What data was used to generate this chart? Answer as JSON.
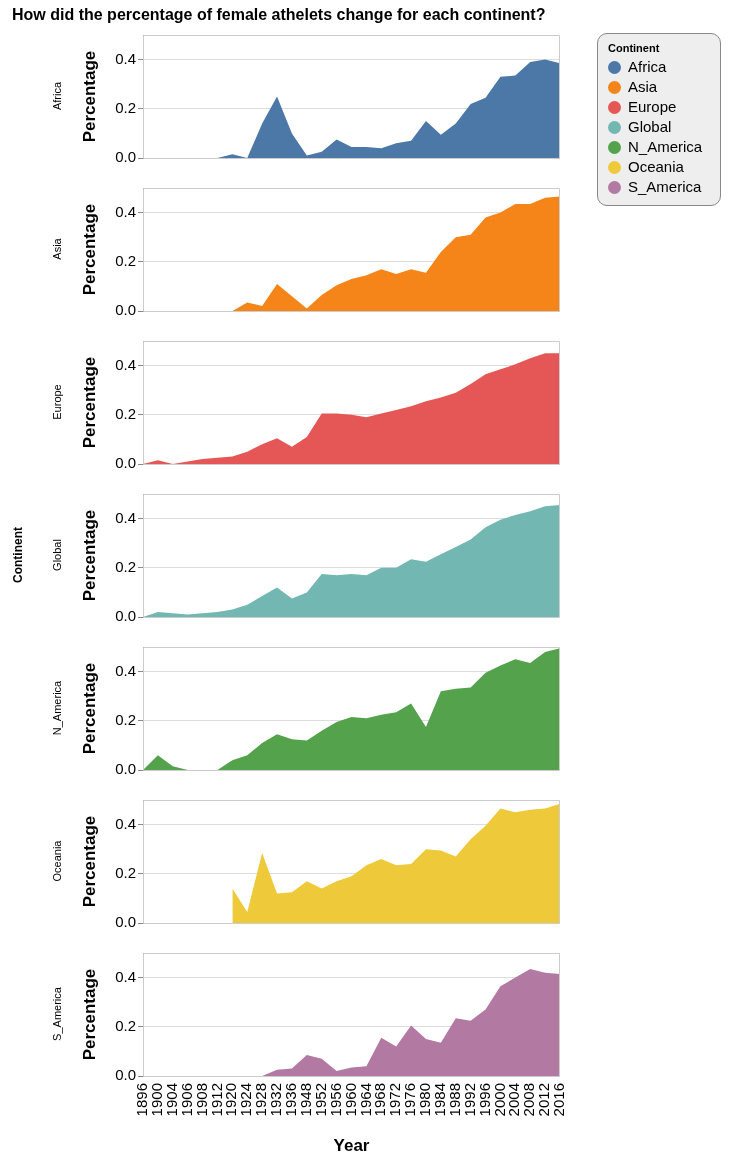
{
  "chart_data": [
    {
      "type": "area",
      "title": "How did the percentage of female athelets change for each continent?",
      "legend": "right",
      "legend_title": "Continent",
      "ylabel": "Percentage",
      "tick_labels": "y",
      "grid": "y",
      "ylim": [
        0,
        0.5
      ],
      "yticks": [
        {
          "value": 0,
          "label": "0.0"
        },
        {
          "value": 0.2,
          "label": "0.2"
        },
        {
          "value": 0.4,
          "label": "0.4"
        }
      ],
      "categories": [
        "1896",
        "1900",
        "1904",
        "1906",
        "1908",
        "1912",
        "1920",
        "1924",
        "1928",
        "1932",
        "1936",
        "1948",
        "1952",
        "1956",
        "1960",
        "1964",
        "1968",
        "1972",
        "1976",
        "1980",
        "1984",
        "1988",
        "1992",
        "1996",
        "2000",
        "2004",
        "2008",
        "2012",
        "2016"
      ],
      "series": [
        {
          "name": "Africa",
          "color": "#4c78a8",
          "values": [
            null,
            null,
            null,
            null,
            null,
            0,
            0.015,
            0,
            0.14,
            0.25,
            0.1,
            0.01,
            0.025,
            0.075,
            0.045,
            0.045,
            0.04,
            0.06,
            0.07,
            0.15,
            0.095,
            0.14,
            0.22,
            0.245,
            0.33,
            0.335,
            0.39,
            0.4,
            0.385
          ]
        }
      ]
    },
    {
      "type": "area",
      "ylabel": "Percentage",
      "tick_labels": "y",
      "grid": "y",
      "ylim": [
        0,
        0.5
      ],
      "yticks": [
        {
          "value": 0,
          "label": "0.0"
        },
        {
          "value": 0.2,
          "label": "0.2"
        },
        {
          "value": 0.4,
          "label": "0.4"
        }
      ],
      "categories": [
        "1896",
        "1900",
        "1904",
        "1906",
        "1908",
        "1912",
        "1920",
        "1924",
        "1928",
        "1932",
        "1936",
        "1948",
        "1952",
        "1956",
        "1960",
        "1964",
        "1968",
        "1972",
        "1976",
        "1980",
        "1984",
        "1988",
        "1992",
        "1996",
        "2000",
        "2004",
        "2008",
        "2012",
        "2016"
      ],
      "series": [
        {
          "name": "Asia",
          "color": "#f58518",
          "values": [
            null,
            null,
            null,
            null,
            null,
            null,
            0,
            0.035,
            0.02,
            0.11,
            0.06,
            0.01,
            0.065,
            0.105,
            0.13,
            0.145,
            0.17,
            0.15,
            0.17,
            0.155,
            0.24,
            0.3,
            0.31,
            0.38,
            0.4,
            0.435,
            0.435,
            0.46,
            0.465
          ]
        }
      ]
    },
    {
      "type": "area",
      "ylabel": "Percentage",
      "tick_labels": "y",
      "grid": "y",
      "ylim": [
        0,
        0.5
      ],
      "yticks": [
        {
          "value": 0,
          "label": "0.0"
        },
        {
          "value": 0.2,
          "label": "0.2"
        },
        {
          "value": 0.4,
          "label": "0.4"
        }
      ],
      "categories": [
        "1896",
        "1900",
        "1904",
        "1906",
        "1908",
        "1912",
        "1920",
        "1924",
        "1928",
        "1932",
        "1936",
        "1948",
        "1952",
        "1956",
        "1960",
        "1964",
        "1968",
        "1972",
        "1976",
        "1980",
        "1984",
        "1988",
        "1992",
        "1996",
        "2000",
        "2004",
        "2008",
        "2012",
        "2016"
      ],
      "series": [
        {
          "name": "Europe",
          "color": "#e45756",
          "values": [
            0,
            0.015,
            0,
            0.01,
            0.02,
            0.025,
            0.03,
            0.05,
            0.08,
            0.105,
            0.07,
            0.11,
            0.205,
            0.205,
            0.2,
            0.19,
            0.205,
            0.22,
            0.235,
            0.255,
            0.27,
            0.29,
            0.325,
            0.365,
            0.385,
            0.405,
            0.43,
            0.45,
            0.45
          ]
        }
      ]
    },
    {
      "type": "area",
      "ylabel": "Percentage",
      "tick_labels": "y",
      "grid": "y",
      "ylim": [
        0,
        0.5
      ],
      "yticks": [
        {
          "value": 0,
          "label": "0.0"
        },
        {
          "value": 0.2,
          "label": "0.2"
        },
        {
          "value": 0.4,
          "label": "0.4"
        }
      ],
      "annotations": [
        "Continent"
      ],
      "categories": [
        "1896",
        "1900",
        "1904",
        "1906",
        "1908",
        "1912",
        "1920",
        "1924",
        "1928",
        "1932",
        "1936",
        "1948",
        "1952",
        "1956",
        "1960",
        "1964",
        "1968",
        "1972",
        "1976",
        "1980",
        "1984",
        "1988",
        "1992",
        "1996",
        "2000",
        "2004",
        "2008",
        "2012",
        "2016"
      ],
      "series": [
        {
          "name": "Global",
          "color": "#72b7b2",
          "values": [
            0,
            0.02,
            0.015,
            0.01,
            0.015,
            0.02,
            0.03,
            0.05,
            0.085,
            0.12,
            0.075,
            0.1,
            0.175,
            0.17,
            0.175,
            0.17,
            0.2,
            0.2,
            0.235,
            0.225,
            0.255,
            0.285,
            0.315,
            0.365,
            0.395,
            0.415,
            0.43,
            0.45,
            0.455
          ]
        }
      ]
    },
    {
      "type": "area",
      "ylabel": "Percentage",
      "tick_labels": "y",
      "grid": "y",
      "ylim": [
        0,
        0.5
      ],
      "yticks": [
        {
          "value": 0,
          "label": "0.0"
        },
        {
          "value": 0.2,
          "label": "0.2"
        },
        {
          "value": 0.4,
          "label": "0.4"
        }
      ],
      "categories": [
        "1896",
        "1900",
        "1904",
        "1906",
        "1908",
        "1912",
        "1920",
        "1924",
        "1928",
        "1932",
        "1936",
        "1948",
        "1952",
        "1956",
        "1960",
        "1964",
        "1968",
        "1972",
        "1976",
        "1980",
        "1984",
        "1988",
        "1992",
        "1996",
        "2000",
        "2004",
        "2008",
        "2012",
        "2016"
      ],
      "series": [
        {
          "name": "N_America",
          "color": "#54a24b",
          "values": [
            0,
            0.06,
            0.015,
            0,
            0,
            0,
            0.04,
            0.06,
            0.11,
            0.145,
            0.125,
            0.12,
            0.16,
            0.195,
            0.215,
            0.21,
            0.225,
            0.235,
            0.27,
            0.175,
            0.32,
            0.33,
            0.335,
            0.395,
            0.425,
            0.45,
            0.435,
            0.48,
            0.495
          ]
        }
      ]
    },
    {
      "type": "area",
      "ylabel": "Percentage",
      "tick_labels": "y",
      "grid": "y",
      "ylim": [
        0,
        0.5
      ],
      "yticks": [
        {
          "value": 0,
          "label": "0.0"
        },
        {
          "value": 0.2,
          "label": "0.2"
        },
        {
          "value": 0.4,
          "label": "0.4"
        }
      ],
      "categories": [
        "1896",
        "1900",
        "1904",
        "1906",
        "1908",
        "1912",
        "1920",
        "1924",
        "1928",
        "1932",
        "1936",
        "1948",
        "1952",
        "1956",
        "1960",
        "1964",
        "1968",
        "1972",
        "1976",
        "1980",
        "1984",
        "1988",
        "1992",
        "1996",
        "2000",
        "2004",
        "2008",
        "2012",
        "2016"
      ],
      "series": [
        {
          "name": "Oceania",
          "color": "#eeca3b",
          "values": [
            null,
            null,
            null,
            null,
            null,
            null,
            0.14,
            0.045,
            0.285,
            0.12,
            0.125,
            0.17,
            0.14,
            0.17,
            0.19,
            0.235,
            0.26,
            0.235,
            0.24,
            0.3,
            0.295,
            0.27,
            0.34,
            0.395,
            0.465,
            0.45,
            0.46,
            0.465,
            0.485
          ]
        }
      ]
    },
    {
      "type": "area",
      "ylabel": "Percentage",
      "xlabel": "Year",
      "grid": "y",
      "ylim": [
        0,
        0.5
      ],
      "yticks": [
        {
          "value": 0,
          "label": "0.0"
        },
        {
          "value": 0.2,
          "label": "0.2"
        },
        {
          "value": 0.4,
          "label": "0.4"
        }
      ],
      "categories": [
        "1896",
        "1900",
        "1904",
        "1906",
        "1908",
        "1912",
        "1920",
        "1924",
        "1928",
        "1932",
        "1936",
        "1948",
        "1952",
        "1956",
        "1960",
        "1964",
        "1968",
        "1972",
        "1976",
        "1980",
        "1984",
        "1988",
        "1992",
        "1996",
        "2000",
        "2004",
        "2008",
        "2012",
        "2016"
      ],
      "series": [
        {
          "name": "S_America",
          "color": "#b279a2",
          "values": [
            null,
            null,
            null,
            null,
            null,
            null,
            null,
            null,
            0,
            0.025,
            0.03,
            0.085,
            0.07,
            0.02,
            0.035,
            0.04,
            0.155,
            0.12,
            0.205,
            0.15,
            0.135,
            0.235,
            0.225,
            0.27,
            0.365,
            0.4,
            0.435,
            0.42,
            0.415
          ]
        }
      ]
    }
  ]
}
